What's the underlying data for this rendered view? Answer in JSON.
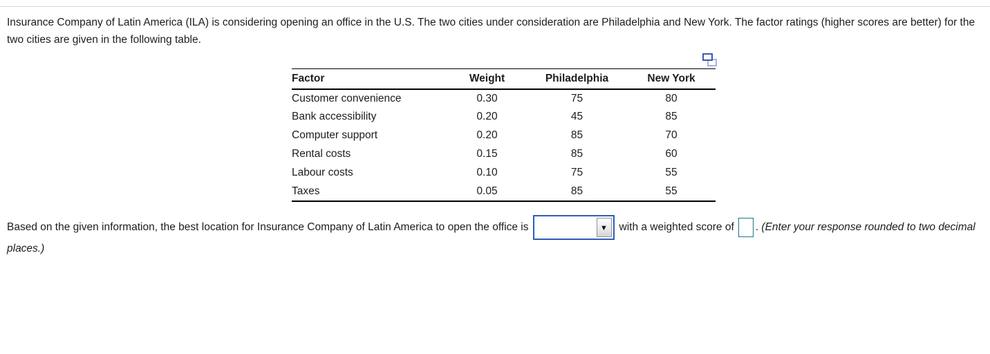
{
  "intro": {
    "text": "Insurance Company of Latin America (ILA) is considering opening an office in the U.S. The two cities under consideration are Philadelphia and New York. The factor ratings (higher scores are better) for the two cities are given in the following table."
  },
  "icons": {
    "table_popup": "overlapping-windows-icon",
    "dropdown_arrow": "▼"
  },
  "table": {
    "headers": [
      "Factor",
      "Weight",
      "Philadelphia",
      "New York"
    ],
    "rows": [
      {
        "factor": "Customer convenience",
        "weight": "0.30",
        "philadelphia": "75",
        "new_york": "80"
      },
      {
        "factor": "Bank accessibility",
        "weight": "0.20",
        "philadelphia": "45",
        "new_york": "85"
      },
      {
        "factor": "Computer support",
        "weight": "0.20",
        "philadelphia": "85",
        "new_york": "70"
      },
      {
        "factor": "Rental costs",
        "weight": "0.15",
        "philadelphia": "85",
        "new_york": "60"
      },
      {
        "factor": "Labour costs",
        "weight": "0.10",
        "philadelphia": "75",
        "new_york": "55"
      },
      {
        "factor": "Taxes",
        "weight": "0.05",
        "philadelphia": "85",
        "new_york": "55"
      }
    ]
  },
  "question": {
    "lead": "Based on the given information, the best location for Insurance Company of Latin America to open the office is",
    "select_value": "",
    "mid": "with a weighted score of",
    "score_value": "",
    "period": ".",
    "note": "(Enter your response rounded to two decimal places.)"
  },
  "colors": {
    "dropdown_border": "#2c5cb8",
    "score_input_border": "#1a768a",
    "icon_front_blue": "#3f57b5",
    "icon_back_blue": "#a9b3dc",
    "top_divider": "#d5d8da",
    "text": "#1d1d1d"
  }
}
